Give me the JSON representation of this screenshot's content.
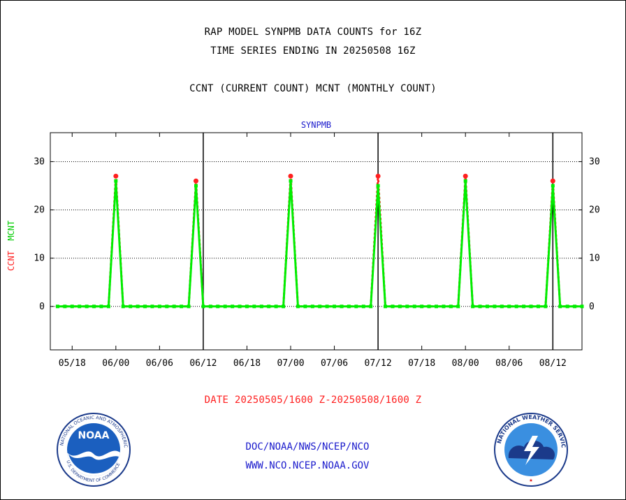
{
  "header": {
    "title_line1": "RAP MODEL SYNPMB DATA COUNTS for 16Z",
    "title_line2": "TIME SERIES ENDING IN 20250508 16Z",
    "subtitle": "CCNT (CURRENT COUNT) MCNT (MONTHLY COUNT)"
  },
  "chart_data": {
    "type": "line",
    "title": "SYNPMB",
    "ylabel_parts": [
      "CCNT",
      "MCNT"
    ],
    "xlabel": "DATE 20250505/1600 Z-20250508/1600 Z",
    "x_tick_labels": [
      "05/18",
      "06/00",
      "06/06",
      "06/12",
      "06/18",
      "07/00",
      "07/06",
      "07/12",
      "07/18",
      "08/00",
      "08/06",
      "08/12"
    ],
    "y_ticks": [
      0,
      10,
      20,
      30
    ],
    "ylim": [
      -9,
      36
    ],
    "x_hours": [
      -1,
      72
    ],
    "day_boundaries_hours": [
      20,
      44,
      68
    ],
    "grid": "horizontal dotted at 0,10,20,30",
    "series": [
      {
        "name": "CCNT",
        "color": "#ff2020",
        "x": [
          0,
          1,
          2,
          3,
          4,
          5,
          6,
          7,
          8,
          9,
          10,
          11,
          12,
          13,
          14,
          15,
          16,
          17,
          18,
          19,
          20,
          21,
          22,
          23,
          24,
          25,
          26,
          27,
          28,
          29,
          30,
          31,
          32,
          33,
          34,
          35,
          36,
          37,
          38,
          39,
          40,
          41,
          42,
          43,
          44,
          45,
          46,
          47,
          48,
          49,
          50,
          51,
          52,
          53,
          54,
          55,
          56,
          57,
          58,
          59,
          60,
          61,
          62,
          63,
          64,
          65,
          66,
          67,
          68,
          69,
          70,
          71,
          72
        ],
        "values": [
          0,
          0,
          0,
          0,
          0,
          0,
          0,
          0,
          27,
          0,
          0,
          0,
          0,
          0,
          0,
          0,
          0,
          0,
          0,
          26,
          0,
          0,
          0,
          0,
          0,
          0,
          0,
          0,
          0,
          0,
          0,
          0,
          27,
          0,
          0,
          0,
          0,
          0,
          0,
          0,
          0,
          0,
          0,
          0,
          27,
          0,
          0,
          0,
          0,
          0,
          0,
          0,
          0,
          0,
          0,
          0,
          27,
          0,
          0,
          0,
          0,
          0,
          0,
          0,
          0,
          0,
          0,
          0,
          26,
          0,
          0,
          0,
          0
        ]
      },
      {
        "name": "MCNT",
        "color": "#00ee00",
        "x": [
          0,
          1,
          2,
          3,
          4,
          5,
          6,
          7,
          8,
          9,
          10,
          11,
          12,
          13,
          14,
          15,
          16,
          17,
          18,
          19,
          20,
          21,
          22,
          23,
          24,
          25,
          26,
          27,
          28,
          29,
          30,
          31,
          32,
          33,
          34,
          35,
          36,
          37,
          38,
          39,
          40,
          41,
          42,
          43,
          44,
          45,
          46,
          47,
          48,
          49,
          50,
          51,
          52,
          53,
          54,
          55,
          56,
          57,
          58,
          59,
          60,
          61,
          62,
          63,
          64,
          65,
          66,
          67,
          68,
          69,
          70,
          71,
          72
        ],
        "values": [
          0,
          0,
          0,
          0,
          0,
          0,
          0,
          0,
          26,
          0,
          0,
          0,
          0,
          0,
          0,
          0,
          0,
          0,
          0,
          25,
          0,
          0,
          0,
          0,
          0,
          0,
          0,
          0,
          0,
          0,
          0,
          0,
          26,
          0,
          0,
          0,
          0,
          0,
          0,
          0,
          0,
          0,
          0,
          0,
          25,
          0,
          0,
          0,
          0,
          0,
          0,
          0,
          0,
          0,
          0,
          0,
          26,
          0,
          0,
          0,
          0,
          0,
          0,
          0,
          0,
          0,
          0,
          0,
          25,
          0,
          0,
          0,
          0
        ]
      }
    ]
  },
  "logos": {
    "noaa_name": "NOAA",
    "nws_name": "NATIONAL WEATHER SERVICE"
  },
  "footer": {
    "line1": "DOC/NOAA/NWS/NCEP/NCO",
    "line2": "WWW.NCO.NCEP.NOAA.GOV"
  }
}
